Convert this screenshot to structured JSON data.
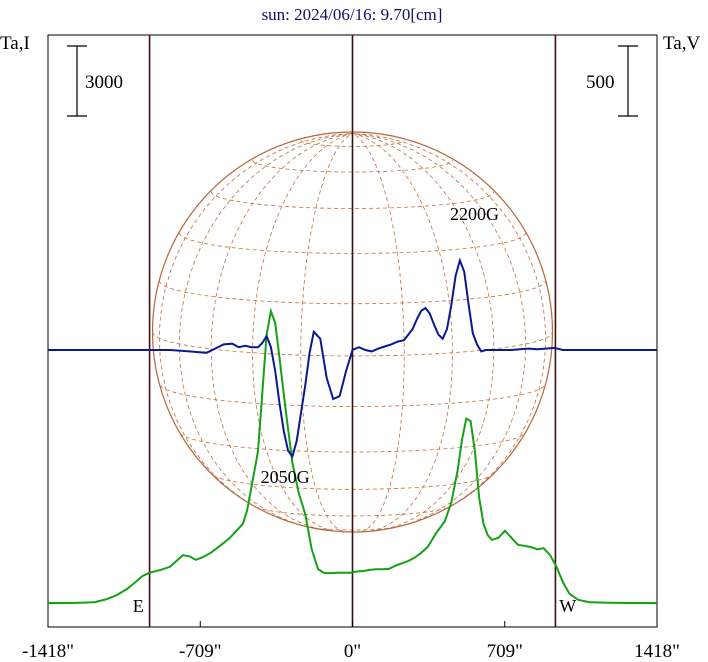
{
  "chart_data": {
    "type": "line",
    "title": "sun: 2024/06/16: 9.70[cm]",
    "left_axis_label": "Ta,I",
    "right_axis_label": "Ta,V",
    "left_scale_bar": {
      "value": 3000,
      "label": "3000"
    },
    "right_scale_bar": {
      "value": 500,
      "label": "500"
    },
    "x_ticks": [
      {
        "value": -1418,
        "label": "-1418\""
      },
      {
        "value": -709,
        "label": "-709\""
      },
      {
        "value": 0,
        "label": "0\""
      },
      {
        "value": 709,
        "label": "709\""
      },
      {
        "value": 1418,
        "label": "1418\""
      }
    ],
    "xlim": [
      -1418,
      1418
    ],
    "grid": false,
    "vertical_lines": [
      -945,
      0,
      945
    ],
    "limb_labels": [
      {
        "x": -1000,
        "label": "E"
      },
      {
        "x": 1000,
        "label": "W"
      }
    ],
    "annotations": [
      {
        "x": -314,
        "label": "2050G"
      },
      {
        "x": 568,
        "label": "2200G"
      }
    ],
    "series": [
      {
        "id": "intensity",
        "color": "#16a016",
        "x": [
          -1418,
          -1350,
          -1300,
          -1250,
          -1200,
          -1150,
          -1100,
          -1050,
          -1010,
          -980,
          -945,
          -900,
          -850,
          -820,
          -790,
          -760,
          -730,
          -700,
          -660,
          -610,
          -570,
          -540,
          -510,
          -490,
          -470,
          -440,
          -420,
          -400,
          -380,
          -360,
          -340,
          -310,
          -280,
          -250,
          -220,
          -190,
          -160,
          -130,
          -100,
          -70,
          -40,
          -10,
          20,
          50,
          80,
          110,
          140,
          170,
          200,
          230,
          260,
          290,
          320,
          350,
          390,
          430,
          460,
          490,
          510,
          530,
          550,
          570,
          590,
          610,
          630,
          650,
          680,
          710,
          740,
          770,
          800,
          830,
          860,
          890,
          920,
          950,
          980,
          1010,
          1050,
          1100,
          1150,
          1200,
          1250,
          1300,
          1350,
          1418
        ],
        "y": [
          0,
          0,
          5,
          15,
          40,
          150,
          330,
          600,
          900,
          1150,
          1300,
          1400,
          1550,
          1800,
          2050,
          2000,
          1850,
          1950,
          2150,
          2500,
          2800,
          3100,
          3400,
          4000,
          5000,
          6500,
          9000,
          11500,
          12500,
          12000,
          10500,
          8200,
          6000,
          4700,
          3800,
          2300,
          1450,
          1280,
          1280,
          1300,
          1300,
          1300,
          1350,
          1370,
          1420,
          1450,
          1450,
          1460,
          1600,
          1700,
          1800,
          1950,
          2150,
          2400,
          3000,
          3500,
          4300,
          5700,
          7000,
          7900,
          7800,
          6500,
          4500,
          3400,
          2900,
          2700,
          2800,
          3100,
          2800,
          2500,
          2450,
          2400,
          2300,
          2350,
          2050,
          1550,
          900,
          400,
          140,
          40,
          20,
          10,
          5,
          0,
          0,
          0
        ],
        "note": "values are relative intensity on the Ta,I scale (scale bar = 3000)"
      },
      {
        "id": "polarization",
        "color": "#0a1a8c",
        "x": [
          -1418,
          -1300,
          -1200,
          -1100,
          -1000,
          -900,
          -850,
          -800,
          -760,
          -720,
          -680,
          -640,
          -600,
          -560,
          -530,
          -500,
          -470,
          -440,
          -420,
          -400,
          -380,
          -360,
          -340,
          -320,
          -300,
          -280,
          -260,
          -240,
          -220,
          -200,
          -180,
          -150,
          -120,
          -90,
          -60,
          -30,
          0,
          30,
          60,
          90,
          120,
          150,
          180,
          210,
          240,
          260,
          280,
          300,
          320,
          340,
          360,
          380,
          400,
          420,
          440,
          460,
          480,
          500,
          520,
          540,
          560,
          580,
          600,
          620,
          640,
          660,
          700,
          740,
          780,
          820,
          860,
          900,
          940,
          980,
          1020,
          1060,
          1100,
          1200,
          1300,
          1418
        ],
        "y": [
          0,
          0,
          0,
          0,
          0,
          0,
          0,
          -5,
          -10,
          -15,
          -20,
          10,
          40,
          45,
          20,
          30,
          20,
          20,
          50,
          100,
          20,
          -150,
          -380,
          -580,
          -720,
          -760,
          -650,
          -450,
          -250,
          -20,
          130,
          80,
          -200,
          -350,
          -330,
          -150,
          0,
          20,
          0,
          -10,
          10,
          25,
          40,
          60,
          70,
          110,
          150,
          220,
          280,
          300,
          260,
          180,
          110,
          80,
          150,
          320,
          530,
          640,
          560,
          330,
          120,
          40,
          -10,
          0,
          0,
          0,
          0,
          0,
          5,
          10,
          5,
          10,
          15,
          0,
          0,
          0,
          0,
          0,
          0,
          0
        ],
        "note": "values are relative circular polarization on the Ta,V scale (scale bar = 500)"
      }
    ]
  }
}
